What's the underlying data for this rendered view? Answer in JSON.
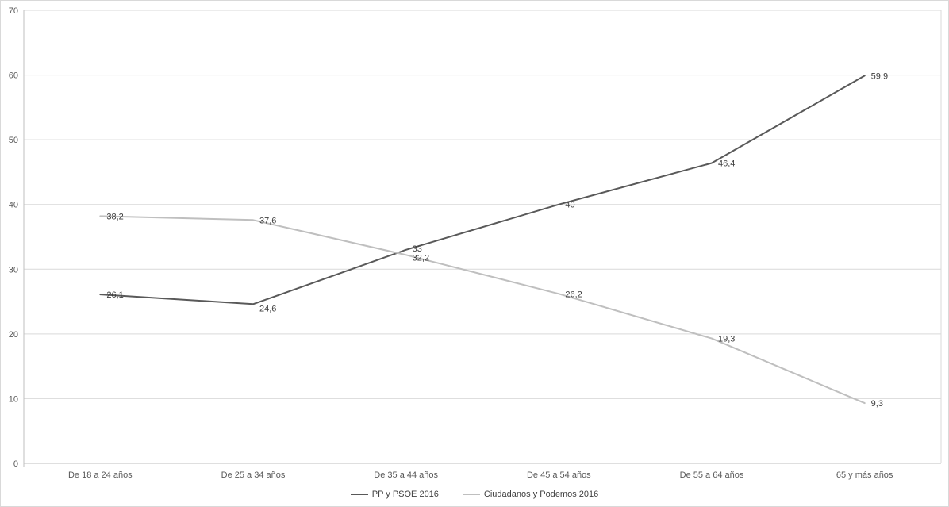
{
  "chart_data": {
    "type": "line",
    "title": "",
    "categories": [
      "De 18 a 24 años",
      "De 25 a 34 años",
      "De 35 a 44 años",
      "De 45 a 54 años",
      "De 55 a 64 años",
      "65 y más años"
    ],
    "series": [
      {
        "name": "PP y PSOE 2016",
        "values": [
          26.1,
          24.6,
          33,
          40,
          46.4,
          59.9
        ],
        "labels": [
          "26,1",
          "24,6",
          "33",
          "40",
          "46,4",
          "59,9"
        ],
        "color": "#595959"
      },
      {
        "name": "Ciudadanos y Podemos 2016",
        "values": [
          38.2,
          37.6,
          32.2,
          26.2,
          19.3,
          9.3
        ],
        "labels": [
          "38,2",
          "37,6",
          "32,2",
          "26,2",
          "19,3",
          "9,3"
        ],
        "color": "#bfbfbf"
      }
    ],
    "y_axis": {
      "min": 0,
      "max": 70,
      "step": 10,
      "tick_labels": [
        "0",
        "10",
        "20",
        "30",
        "40",
        "50",
        "60",
        "70"
      ]
    },
    "xlabel": "",
    "ylabel": "",
    "grid": "horizontal",
    "legend_position": "bottom",
    "gridline_color": "#d9d9d9",
    "axis_line_color": "#bfbfbf",
    "tick_color": "#595959",
    "label_color": "#404040",
    "background": "#ffffff"
  }
}
